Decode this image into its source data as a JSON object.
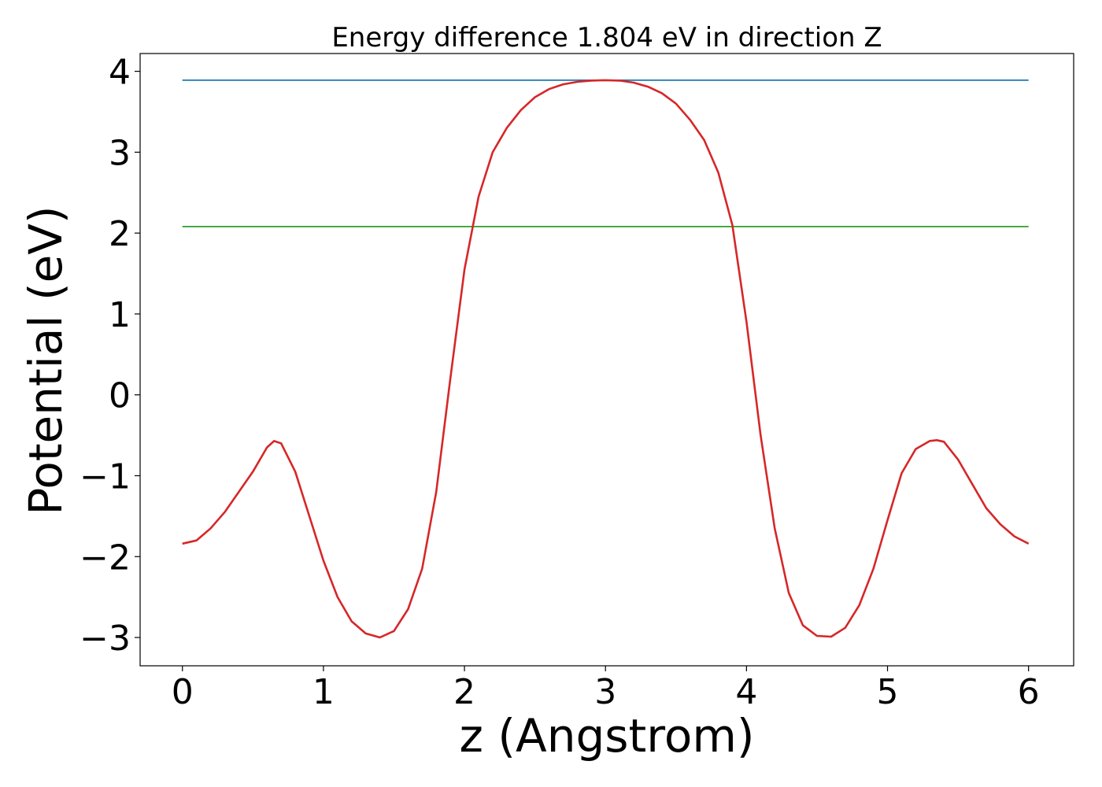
{
  "chart_data": {
    "type": "line",
    "title": "Energy difference 1.804 eV in direction Z",
    "xlabel": "z (Angstrom)",
    "ylabel": "Potential (eV)",
    "xlim": [
      -0.3,
      6.32
    ],
    "ylim": [
      -3.35,
      4.22
    ],
    "x_ticks": [
      0,
      1,
      2,
      3,
      4,
      5,
      6
    ],
    "y_ticks": [
      -3,
      -2,
      -1,
      0,
      1,
      2,
      3,
      4
    ],
    "x_tick_labels": [
      "0",
      "1",
      "2",
      "3",
      "4",
      "5",
      "6"
    ],
    "y_tick_labels": [
      "−3",
      "−2",
      "−1",
      "0",
      "1",
      "2",
      "3",
      "4"
    ],
    "grid": false,
    "series": [
      {
        "color": "#d62728",
        "x": [
          0.0,
          0.1,
          0.2,
          0.3,
          0.4,
          0.5,
          0.6,
          0.65,
          0.7,
          0.8,
          0.9,
          1.0,
          1.1,
          1.2,
          1.3,
          1.4,
          1.5,
          1.6,
          1.7,
          1.8,
          1.9,
          2.0,
          2.1,
          2.2,
          2.3,
          2.4,
          2.5,
          2.6,
          2.7,
          2.8,
          2.9,
          3.0,
          3.1,
          3.2,
          3.3,
          3.4,
          3.5,
          3.6,
          3.7,
          3.8,
          3.9,
          4.0,
          4.1,
          4.2,
          4.3,
          4.4,
          4.5,
          4.6,
          4.7,
          4.8,
          4.9,
          5.0,
          5.1,
          5.2,
          5.3,
          5.35,
          5.4,
          5.5,
          5.6,
          5.7,
          5.8,
          5.9,
          6.0
        ],
        "y": [
          -1.84,
          -1.8,
          -1.65,
          -1.45,
          -1.2,
          -0.95,
          -0.65,
          -0.57,
          -0.6,
          -0.95,
          -1.5,
          -2.05,
          -2.5,
          -2.8,
          -2.95,
          -3.0,
          -2.92,
          -2.65,
          -2.15,
          -1.2,
          0.2,
          1.55,
          2.45,
          3.0,
          3.3,
          3.52,
          3.68,
          3.78,
          3.84,
          3.87,
          3.885,
          3.89,
          3.885,
          3.86,
          3.81,
          3.73,
          3.6,
          3.4,
          3.15,
          2.75,
          2.1,
          0.9,
          -0.5,
          -1.65,
          -2.45,
          -2.85,
          -2.98,
          -2.99,
          -2.88,
          -2.6,
          -2.15,
          -1.55,
          -0.97,
          -0.67,
          -0.57,
          -0.56,
          -0.58,
          -0.8,
          -1.1,
          -1.4,
          -1.6,
          -1.75,
          -1.84
        ]
      },
      {
        "color": "#1f77b4",
        "x": [
          0.0,
          6.0
        ],
        "y": [
          3.89,
          3.89
        ]
      },
      {
        "color": "#2ca02c",
        "x": [
          0.0,
          6.0
        ],
        "y": [
          2.08,
          2.08
        ]
      }
    ]
  }
}
